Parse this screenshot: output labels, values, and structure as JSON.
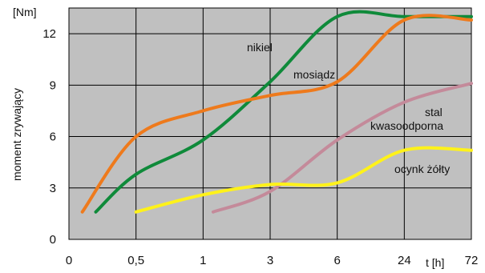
{
  "chart_data": {
    "type": "line",
    "ylabel": "moment zrywający",
    "yunit": "[Nm]",
    "xlabel": "t [h]",
    "x_tick_labels": [
      "0",
      "0,5",
      "1",
      "3",
      "6",
      "24",
      "72"
    ],
    "y_ticks": [
      0,
      3,
      6,
      9,
      12
    ],
    "ylim": [
      0,
      13.5
    ],
    "x_scale": "nonlinear (0, 0,5, 1, 3, 6, 24, 72 evenly spaced)",
    "grid": true,
    "background": "#c0c0c0",
    "series": [
      {
        "name": "nikiel",
        "color": "#0f8a3a",
        "x": [
          0.2,
          0.5,
          1,
          3,
          6,
          24,
          72
        ],
        "y": [
          1.6,
          3.8,
          5.8,
          9.2,
          13.0,
          13.0,
          13.0
        ]
      },
      {
        "name": "mosiądz",
        "color": "#ee7a1c",
        "x": [
          0.1,
          0.5,
          1,
          3,
          6,
          24,
          72
        ],
        "y": [
          1.6,
          6.0,
          7.5,
          8.4,
          9.2,
          12.8,
          12.8
        ]
      },
      {
        "name": "stal kwasoodporna",
        "color": "#c48a9a",
        "x": [
          1.3,
          3,
          6,
          24,
          72
        ],
        "y": [
          1.6,
          2.8,
          5.8,
          8.0,
          9.1
        ]
      },
      {
        "name": "ocynk żółty",
        "color": "#fff21a",
        "x": [
          0.5,
          1,
          3,
          6,
          24,
          72
        ],
        "y": [
          1.6,
          2.6,
          3.2,
          3.3,
          5.2,
          5.2
        ]
      }
    ],
    "series_labels": {
      "nikiel": "nikiel",
      "mosiadz": "mosiądz",
      "stal_line1": "stal",
      "stal_line2": "kwasoodporna",
      "ocynk": "ocynk żółty"
    }
  }
}
